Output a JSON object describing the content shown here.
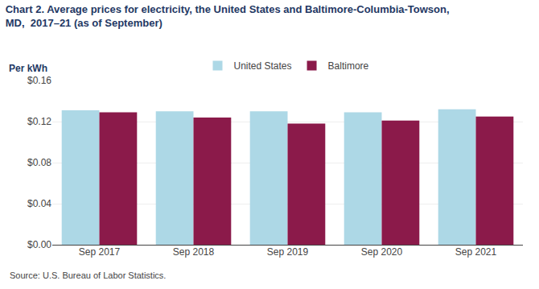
{
  "chart_data": {
    "type": "bar",
    "title": "Chart 2. Average prices for electricity, the United States and Baltimore-Columbia-Towson,",
    "subtitle": "MD,  2017–21 (as of September)",
    "ylabel": "Per kWh",
    "annotations": [
      "Source: U.S. Bureau of Labor Statistics."
    ],
    "categories": [
      "Sep 2017",
      "Sep 2018",
      "Sep 2019",
      "Sep 2020",
      "Sep 2021"
    ],
    "series": [
      {
        "name": "United States",
        "color": "#ADD8E6",
        "values": [
          0.131,
          0.13,
          0.13,
          0.129,
          0.132
        ]
      },
      {
        "name": "Baltimore",
        "color": "#8B1A4A",
        "values": [
          0.129,
          0.124,
          0.118,
          0.121,
          0.125
        ]
      }
    ],
    "ylim": [
      0,
      0.16
    ],
    "yticks": [
      {
        "value": 0.0,
        "label": "$0.00"
      },
      {
        "value": 0.04,
        "label": "$0.04"
      },
      {
        "value": 0.08,
        "label": "$0.08"
      },
      {
        "value": 0.12,
        "label": "$0.12"
      },
      {
        "value": 0.16,
        "label": "$0.16"
      }
    ],
    "grid": true,
    "legend": "top"
  }
}
